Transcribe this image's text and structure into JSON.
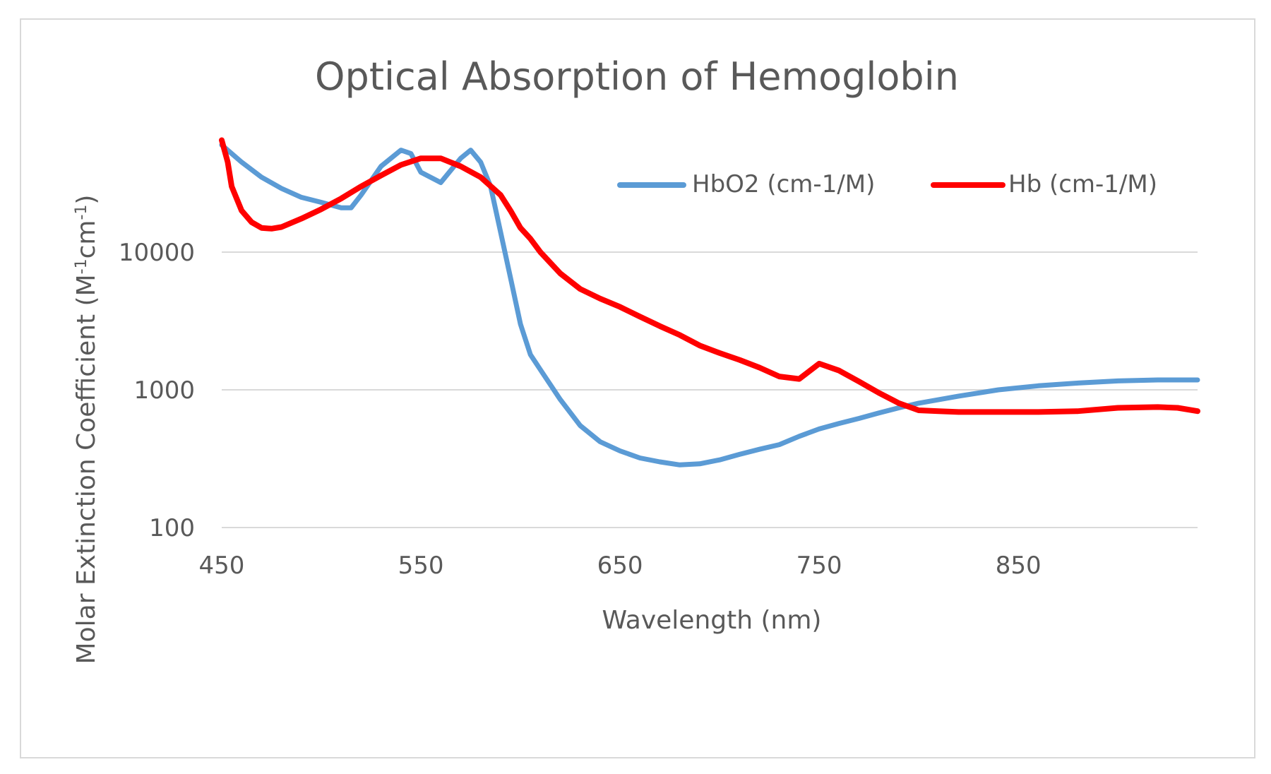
{
  "chart_data": {
    "type": "line",
    "title": "Optical Absorption of Hemoglobin",
    "xlabel": "Wavelength (nm)",
    "ylabel_main": "Molar Extinction Coefficient (M",
    "ylabel_sup1": "-1",
    "ylabel_mid": "cm",
    "ylabel_sup2": "-1",
    "ylabel_end": ")",
    "x_ticks": [
      "450",
      "550",
      "650",
      "750",
      "850"
    ],
    "y_ticks": [
      "100",
      "1000",
      "10000"
    ],
    "xlim": [
      450,
      940
    ],
    "ylim": [
      100,
      70000
    ],
    "y_scale": "log",
    "grid": true,
    "legend_position": "top-right",
    "series": [
      {
        "name": "HbO2 (cm-1/M)",
        "color": "#5b9bd5",
        "x": [
          450,
          460,
          470,
          480,
          490,
          500,
          510,
          515,
          520,
          530,
          540,
          545,
          550,
          560,
          570,
          575,
          580,
          585,
          590,
          595,
          600,
          605,
          610,
          620,
          630,
          640,
          650,
          660,
          670,
          680,
          690,
          700,
          710,
          720,
          730,
          740,
          750,
          760,
          770,
          780,
          790,
          800,
          820,
          840,
          860,
          880,
          900,
          920,
          940
        ],
        "y": [
          60000,
          45000,
          35000,
          29000,
          25000,
          23000,
          21000,
          21000,
          26000,
          42000,
          55000,
          52000,
          38000,
          32000,
          48000,
          55000,
          45000,
          30000,
          14000,
          6500,
          3000,
          1800,
          1400,
          850,
          550,
          420,
          360,
          320,
          300,
          285,
          290,
          310,
          340,
          370,
          400,
          460,
          520,
          570,
          620,
          680,
          740,
          800,
          900,
          1000,
          1070,
          1120,
          1160,
          1180,
          1180
        ]
      },
      {
        "name": "Hb (cm-1/M)",
        "color": "#ff0000",
        "x": [
          450,
          453,
          455,
          460,
          465,
          470,
          475,
          480,
          490,
          500,
          510,
          520,
          530,
          540,
          550,
          560,
          570,
          580,
          590,
          595,
          600,
          605,
          610,
          620,
          630,
          640,
          650,
          660,
          670,
          680,
          690,
          700,
          710,
          720,
          730,
          740,
          750,
          760,
          770,
          780,
          790,
          800,
          810,
          820,
          840,
          860,
          880,
          900,
          920,
          930,
          940
        ],
        "y": [
          65000,
          45000,
          30000,
          20000,
          16500,
          15000,
          14800,
          15200,
          17500,
          20500,
          24500,
          30000,
          36000,
          43000,
          48000,
          48000,
          42000,
          35000,
          26000,
          20000,
          15000,
          12500,
          10000,
          7000,
          5400,
          4600,
          4000,
          3400,
          2900,
          2500,
          2100,
          1850,
          1650,
          1450,
          1250,
          1200,
          1550,
          1380,
          1150,
          950,
          800,
          710,
          700,
          690,
          690,
          690,
          700,
          740,
          750,
          740,
          700
        ]
      }
    ]
  }
}
